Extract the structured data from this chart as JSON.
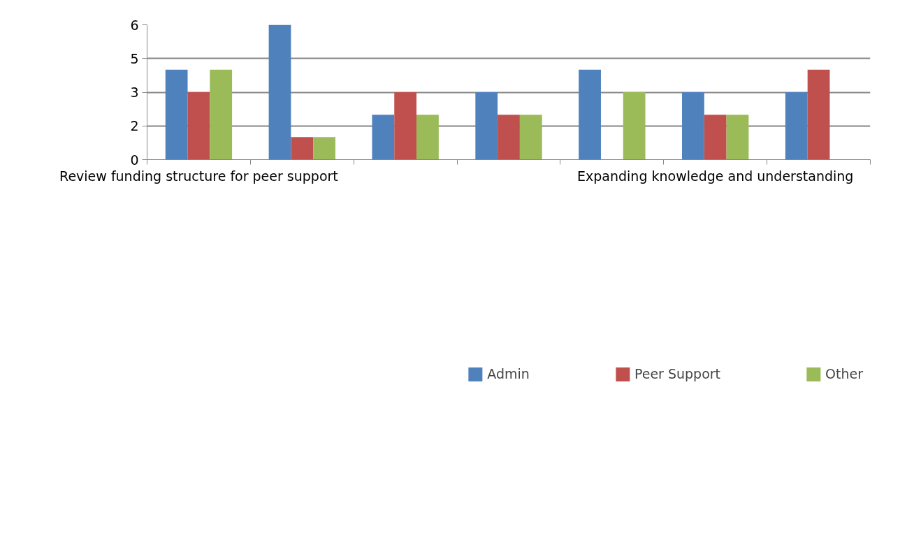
{
  "chart_data": {
    "type": "bar",
    "categories": [
      "Review funding structure for peer support",
      null,
      null,
      null,
      null,
      "Expanding knowledge and understanding",
      null
    ],
    "series": [
      {
        "name": "Admin",
        "color": "#4f81bd",
        "values": [
          4,
          6,
          2,
          3,
          4,
          3,
          3
        ]
      },
      {
        "name": "Peer Support",
        "color": "#c0504d",
        "values": [
          3,
          1,
          3,
          2,
          0,
          2,
          4
        ]
      },
      {
        "name": "Other",
        "color": "#9bbb59",
        "values": [
          4,
          1,
          2,
          2,
          3,
          2,
          0
        ]
      }
    ],
    "ylim": [
      0,
      6
    ],
    "yticks": [
      0,
      {
        "value": 1.5,
        "label": "2"
      },
      3,
      {
        "value": 4.5,
        "label": "5"
      },
      6
    ],
    "grid": "y",
    "legend": "bottom"
  }
}
